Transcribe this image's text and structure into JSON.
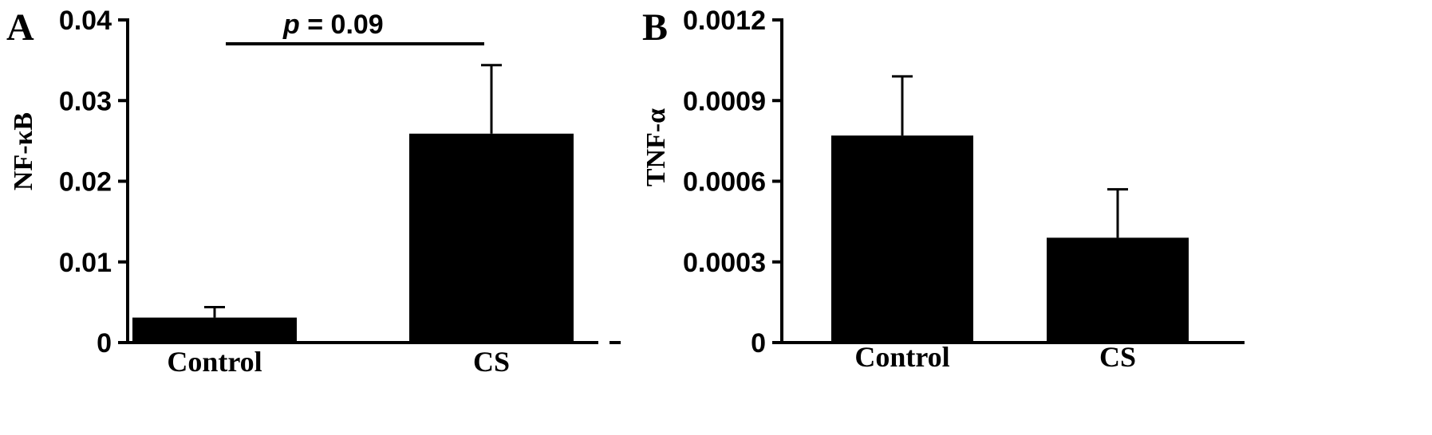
{
  "chart_data": [
    {
      "type": "bar",
      "panel_label": "A",
      "ylabel": "NF-κB",
      "categories": [
        "Control",
        "CS"
      ],
      "values": [
        0.0031,
        0.0259
      ],
      "errors": [
        0.0013,
        0.0085
      ],
      "ylim": [
        0,
        0.04
      ],
      "yticks": [
        0,
        0.01,
        0.02,
        0.03,
        0.04
      ],
      "ytick_labels": [
        "0",
        "0.01",
        "0.02",
        "0.03",
        "0.04"
      ],
      "annotation": {
        "prefix": "p",
        "rest": " = 0.09"
      },
      "grid": false,
      "legend": "none"
    },
    {
      "type": "bar",
      "panel_label": "B",
      "ylabel": "TNF-α",
      "categories": [
        "Control",
        "CS"
      ],
      "values": [
        0.00077,
        0.00039
      ],
      "errors": [
        0.00022,
        0.00018
      ],
      "ylim": [
        0,
        0.0012
      ],
      "yticks": [
        0,
        0.0003,
        0.0006,
        0.0009,
        0.0012
      ],
      "ytick_labels": [
        "0",
        "0.0003",
        "0.0006",
        "0.0009",
        "0.0012"
      ],
      "grid": false,
      "legend": "none"
    }
  ],
  "colors": {
    "bar": "#000000",
    "axis": "#000000",
    "background": "#ffffff"
  }
}
